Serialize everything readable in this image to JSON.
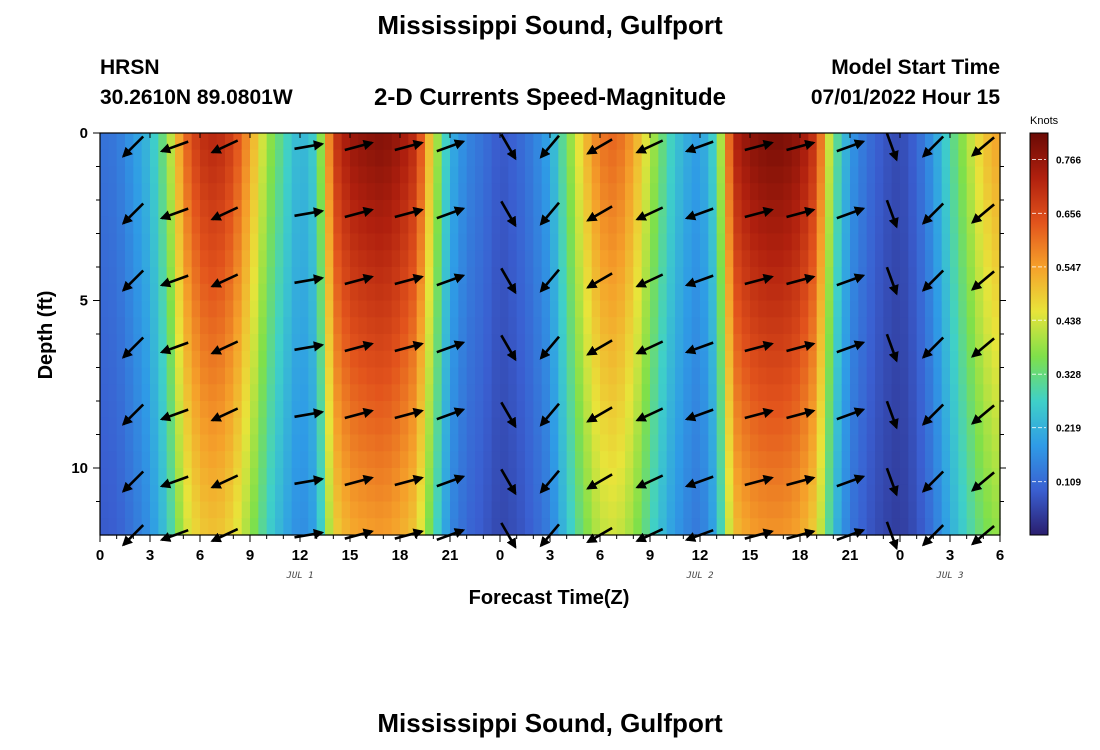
{
  "title": "Mississippi Sound, Gulfport",
  "title_bottom": "Mississippi Sound, Gulfport",
  "station": {
    "name": "HRSN",
    "coords": "30.2610N  89.0801W"
  },
  "subtitle": "2-D Currents Speed-Magnitude",
  "model_start": {
    "label": "Model Start Time",
    "value": "07/01/2022 Hour 15"
  },
  "chart_data": {
    "type": "heatmap",
    "title": "2-D Currents Speed-Magnitude",
    "xlabel": "Forecast Time(Z)",
    "ylabel": "Depth (ft)",
    "xlim": [
      0,
      54
    ],
    "ylim": [
      0,
      12
    ],
    "x_tick_values": [
      0,
      3,
      6,
      9,
      12,
      15,
      18,
      21,
      24,
      27,
      30,
      33,
      36,
      39,
      42,
      45,
      48,
      51,
      54
    ],
    "x_tick_labels": [
      "0",
      "3",
      "6",
      "9",
      "12",
      "15",
      "18",
      "21",
      "0",
      "3",
      "6",
      "9",
      "12",
      "15",
      "18",
      "21",
      "0",
      "3",
      "6"
    ],
    "y_tick_values": [
      0,
      5,
      10
    ],
    "y_tick_labels": [
      "0",
      "5",
      "10"
    ],
    "day_labels": [
      {
        "x": 12,
        "text": "JUL 1"
      },
      {
        "x": 36,
        "text": "JUL 2"
      },
      {
        "x": 51,
        "text": "JUL 3"
      }
    ],
    "colorbar": {
      "label": "Knots",
      "min": 0.0,
      "max": 0.82,
      "ticks": [
        "0.766",
        "0.656",
        "0.547",
        "0.438",
        "0.328",
        "0.219",
        "0.109"
      ],
      "tick_values": [
        0.766,
        0.656,
        0.547,
        0.438,
        0.328,
        0.219,
        0.109
      ],
      "colors": [
        "#2a1e6e",
        "#3a5fd1",
        "#2f9be6",
        "#3fd0c8",
        "#7fe04a",
        "#e8e43a",
        "#f5a02a",
        "#e2531c",
        "#b0200e",
        "#6a0a05"
      ]
    },
    "speed_profile": {
      "hours": [
        0,
        1,
        2,
        3,
        4,
        5,
        6,
        7,
        8,
        9,
        10,
        11,
        12,
        13,
        14,
        15,
        16,
        17,
        18,
        19,
        20,
        21,
        22,
        23,
        24,
        25,
        26,
        27,
        28,
        29,
        30,
        31,
        32,
        33,
        34,
        35,
        36,
        37,
        38,
        39,
        40,
        41,
        42,
        43,
        44,
        45,
        46,
        47,
        48,
        49,
        50,
        51,
        52,
        53,
        54
      ],
      "surface_knots": [
        0.12,
        0.13,
        0.18,
        0.24,
        0.36,
        0.6,
        0.7,
        0.72,
        0.67,
        0.55,
        0.4,
        0.3,
        0.22,
        0.28,
        0.68,
        0.76,
        0.78,
        0.79,
        0.76,
        0.7,
        0.45,
        0.22,
        0.15,
        0.12,
        0.08,
        0.1,
        0.14,
        0.2,
        0.35,
        0.5,
        0.6,
        0.62,
        0.55,
        0.42,
        0.3,
        0.22,
        0.18,
        0.3,
        0.72,
        0.78,
        0.8,
        0.8,
        0.77,
        0.68,
        0.35,
        0.18,
        0.12,
        0.08,
        0.06,
        0.1,
        0.18,
        0.3,
        0.4,
        0.5,
        0.55
      ],
      "depth_factor_at_12ft": 0.7
    },
    "vectors": {
      "times": [
        2,
        4.5,
        7.5,
        12.5,
        15.5,
        18.5,
        21,
        24.5,
        27,
        30,
        33,
        36,
        39.5,
        42,
        45,
        47.5,
        50,
        53
      ],
      "depths": [
        0.4,
        2.4,
        4.4,
        6.4,
        8.4,
        10.4,
        12
      ],
      "direction_deg_by_time": [
        225,
        200,
        205,
        10,
        15,
        15,
        20,
        300,
        230,
        210,
        205,
        200,
        15,
        15,
        20,
        290,
        225,
        220
      ]
    }
  }
}
